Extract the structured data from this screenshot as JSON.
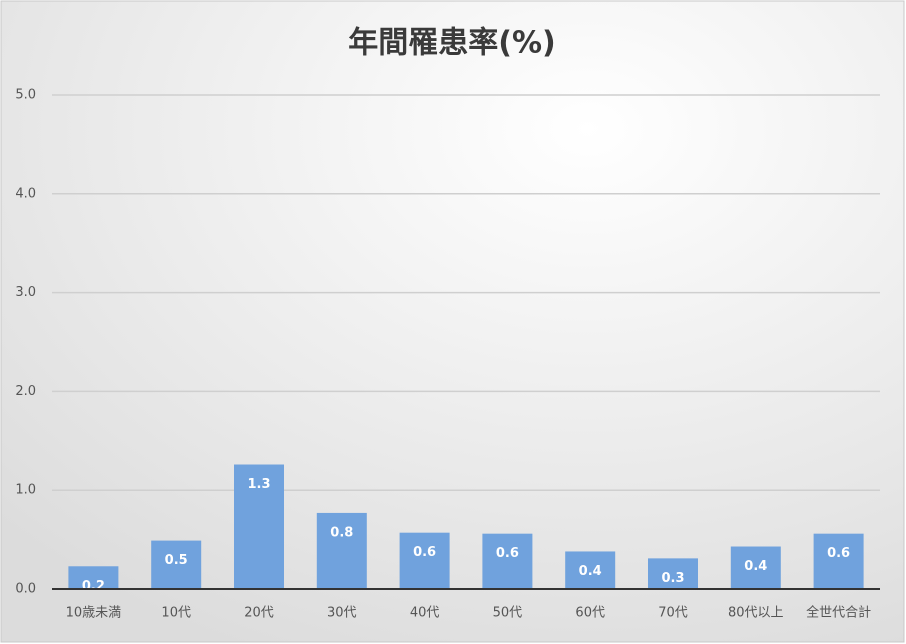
{
  "chart_data": {
    "type": "bar",
    "title": "年間罹患率(%)",
    "categories": [
      "10歳未満",
      "10代",
      "20代",
      "30代",
      "40代",
      "50代",
      "60代",
      "70代",
      "80代以上",
      "全世代合計"
    ],
    "values": [
      0.23,
      0.49,
      1.26,
      0.77,
      0.57,
      0.56,
      0.38,
      0.31,
      0.43,
      0.56
    ],
    "value_labels": [
      "0.2",
      "0.5",
      "1.3",
      "0.8",
      "0.6",
      "0.6",
      "0.4",
      "0.3",
      "0.4",
      "0.6"
    ],
    "color": "#70a2dd",
    "ylim": [
      0,
      5
    ],
    "yticks": [
      {
        "value": 0,
        "label": "0.0"
      },
      {
        "value": 1,
        "label": "1.0"
      },
      {
        "value": 2,
        "label": "2.0"
      },
      {
        "value": 3,
        "label": "3.0"
      },
      {
        "value": 4,
        "label": "4.0"
      },
      {
        "value": 5,
        "label": "5.0"
      }
    ],
    "grid": true
  }
}
